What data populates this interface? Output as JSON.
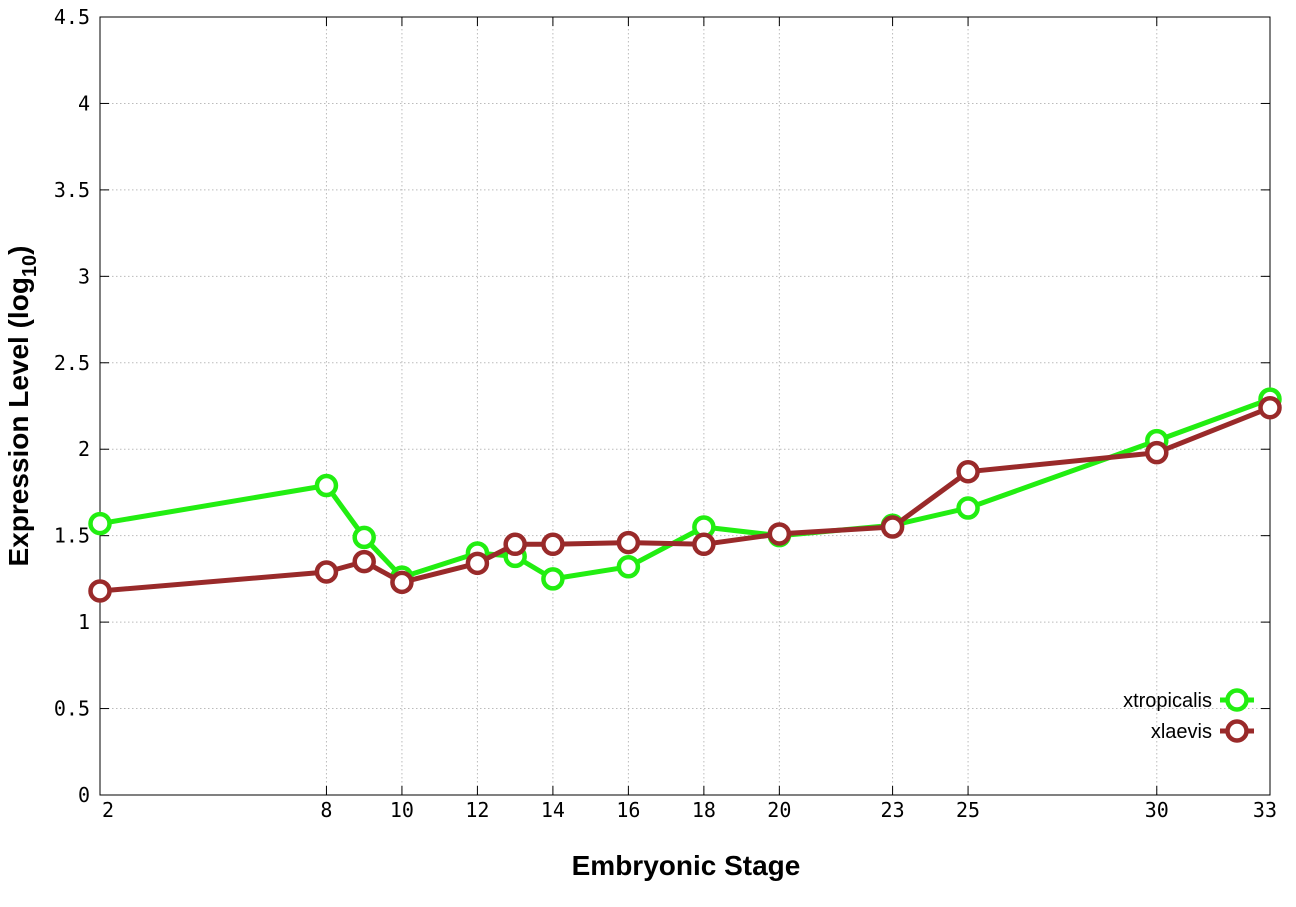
{
  "chart_data": {
    "type": "line",
    "xlabel": "Embryonic Stage",
    "ylabel_main": "Expression Level (log",
    "ylabel_sub": "10",
    "ylabel_close": ")",
    "ylim": [
      0,
      4.5
    ],
    "y_ticks": [
      0,
      0.5,
      1,
      1.5,
      2,
      2.5,
      3,
      3.5,
      4,
      4.5
    ],
    "y_tick_labels": [
      "0",
      "0.5",
      "1",
      "1.5",
      "2",
      "2.5",
      "3",
      "3.5",
      "4",
      "4.5"
    ],
    "x_ticks": [
      2,
      8,
      10,
      12,
      14,
      16,
      18,
      20,
      23,
      25,
      30,
      33
    ],
    "x_tick_labels": [
      "2",
      "8",
      "10",
      "12",
      "14",
      "16",
      "18",
      "20",
      "23",
      "25",
      "30",
      "33"
    ],
    "grid": true,
    "legend_position": "bottom-right",
    "series": [
      {
        "name": "xtropicalis",
        "color": "#22ee11",
        "x": [
          2,
          8,
          9,
          10,
          12,
          13,
          14,
          16,
          18,
          20,
          23,
          25,
          30,
          33
        ],
        "y": [
          1.57,
          1.79,
          1.49,
          1.26,
          1.4,
          1.38,
          1.25,
          1.32,
          1.55,
          1.5,
          1.56,
          1.66,
          2.05,
          2.29
        ]
      },
      {
        "name": "xlaevis",
        "color": "#992a2a",
        "x": [
          2,
          8,
          9,
          10,
          12,
          13,
          14,
          16,
          18,
          20,
          23,
          25,
          30,
          33
        ],
        "y": [
          1.18,
          1.29,
          1.35,
          1.23,
          1.34,
          1.45,
          1.45,
          1.46,
          1.45,
          1.51,
          1.55,
          1.87,
          1.98,
          2.24
        ]
      }
    ]
  }
}
